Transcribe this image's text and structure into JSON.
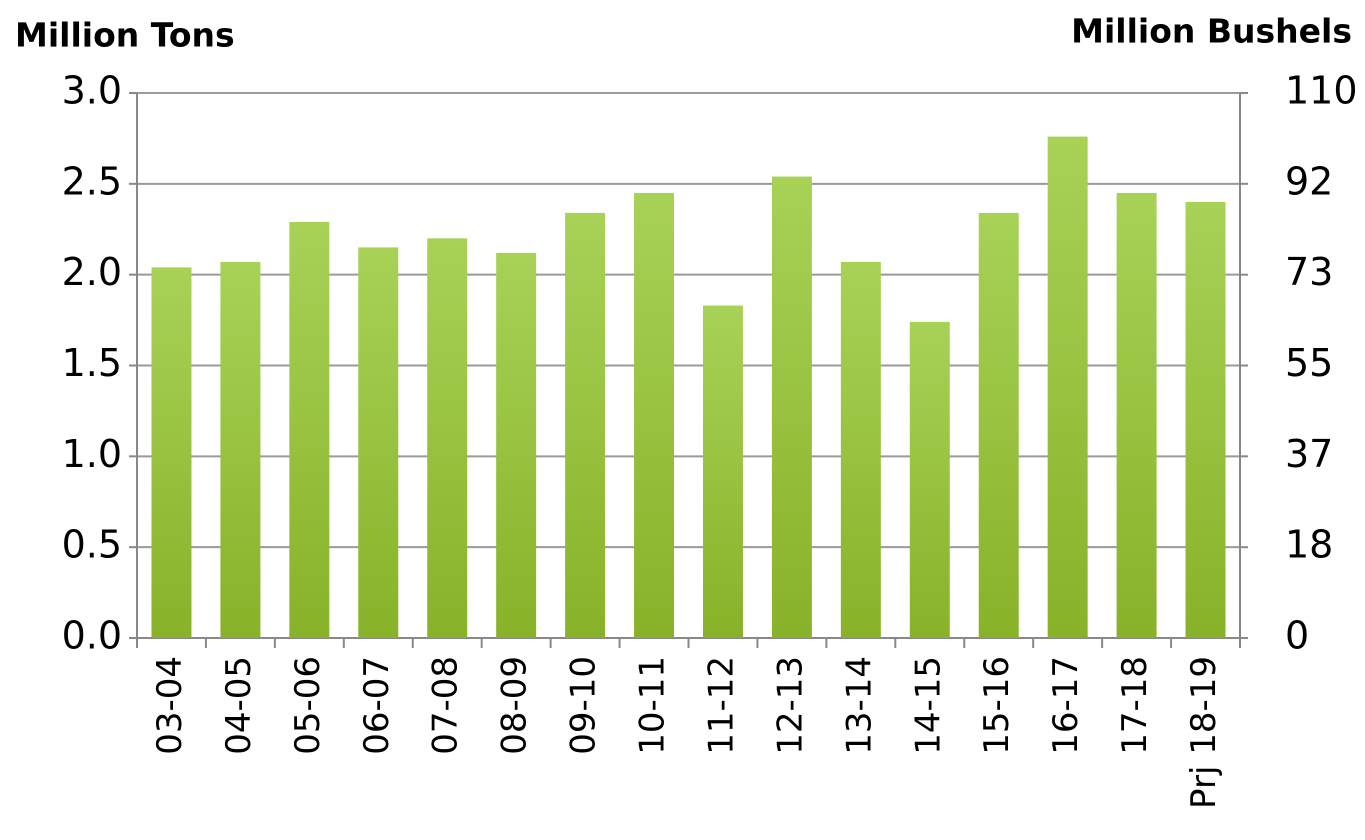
{
  "chart_data": {
    "type": "bar",
    "y_label": "Million Tons",
    "y2_label": "Million Bushels",
    "categories": [
      "03-04",
      "04-05",
      "05-06",
      "06-07",
      "07-08",
      "08-09",
      "09-10",
      "10-11",
      "11-12",
      "12-13",
      "13-14",
      "14-15",
      "15-16",
      "16-17",
      "17-18",
      "Prj 18-19"
    ],
    "values": [
      2.04,
      2.07,
      2.29,
      2.15,
      2.2,
      2.12,
      2.34,
      2.45,
      1.83,
      2.54,
      2.07,
      1.74,
      2.34,
      2.76,
      2.45,
      2.4
    ],
    "color": "#9cc43f",
    "ylim": [
      0,
      3
    ],
    "yticks": [
      {
        "value": 0,
        "label": "0.0"
      },
      0.5,
      {
        "value": 1,
        "label": "1.0"
      },
      1.5,
      {
        "value": 2,
        "label": "2.0"
      },
      2.5,
      {
        "value": 3,
        "label": "3.0"
      }
    ],
    "y2lim": [
      0,
      110
    ],
    "y2ticks": [
      0,
      {
        "value": 18.33,
        "label": "18"
      },
      {
        "value": 36.67,
        "label": "37"
      },
      55,
      {
        "value": 73.33,
        "label": "73"
      },
      {
        "value": 91.67,
        "label": "92"
      },
      110
    ],
    "grid": true
  }
}
